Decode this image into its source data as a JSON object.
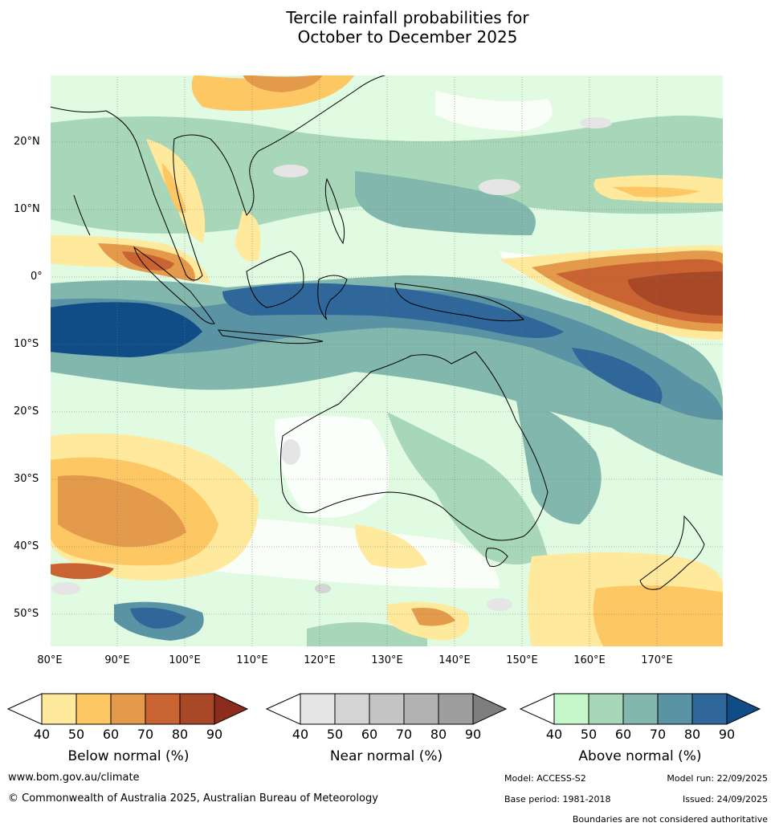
{
  "title_line1": "Tercile rainfall probabilities for",
  "title_line2": "October to December 2025",
  "map": {
    "lon_range": [
      80,
      180
    ],
    "lat_range": [
      -55,
      30
    ],
    "lat_labels": [
      "20°N",
      "10°N",
      "0°",
      "10°S",
      "20°S",
      "30°S",
      "40°S",
      "50°S"
    ],
    "lon_labels": [
      "80°E",
      "90°E",
      "100°E",
      "110°E",
      "120°E",
      "130°E",
      "140°E",
      "150°E",
      "160°E",
      "170°E"
    ],
    "ocean_color": "#ffffff",
    "land_outline_color": "#000000"
  },
  "colorbars": [
    {
      "title": "Below normal (%)",
      "ticks": [
        "40",
        "50",
        "60",
        "70",
        "80",
        "90"
      ],
      "colors": [
        "#ffffff",
        "#fee99c",
        "#fdc764",
        "#e39a4a",
        "#c96331",
        "#a94826",
        "#8c2c1c"
      ]
    },
    {
      "title": "Near normal (%)",
      "ticks": [
        "40",
        "50",
        "60",
        "70",
        "80",
        "90"
      ],
      "colors": [
        "#ffffff",
        "#e5e5e5",
        "#d4d4d4",
        "#c4c4c4",
        "#b2b2b2",
        "#9e9e9e",
        "#7e7e7e"
      ]
    },
    {
      "title": "Above normal (%)",
      "ticks": [
        "40",
        "50",
        "60",
        "70",
        "80",
        "90"
      ],
      "colors": [
        "#ffffff",
        "#c6f7cb",
        "#a7d6b8",
        "#82b7ad",
        "#5a93a3",
        "#30679a",
        "#104c86"
      ]
    }
  ],
  "footer": {
    "website": "www.bom.gov.au/climate",
    "copyright": "© Commonwealth of Australia 2025, Australian Bureau of Meteorology",
    "model": "Model: ACCESS-S2",
    "base_period": "Base period: 1981-2018",
    "model_run": "Model run: 22/09/2025",
    "issued": "Issued: 24/09/2025",
    "disclaimer": "Boundaries are not considered authoritative"
  }
}
